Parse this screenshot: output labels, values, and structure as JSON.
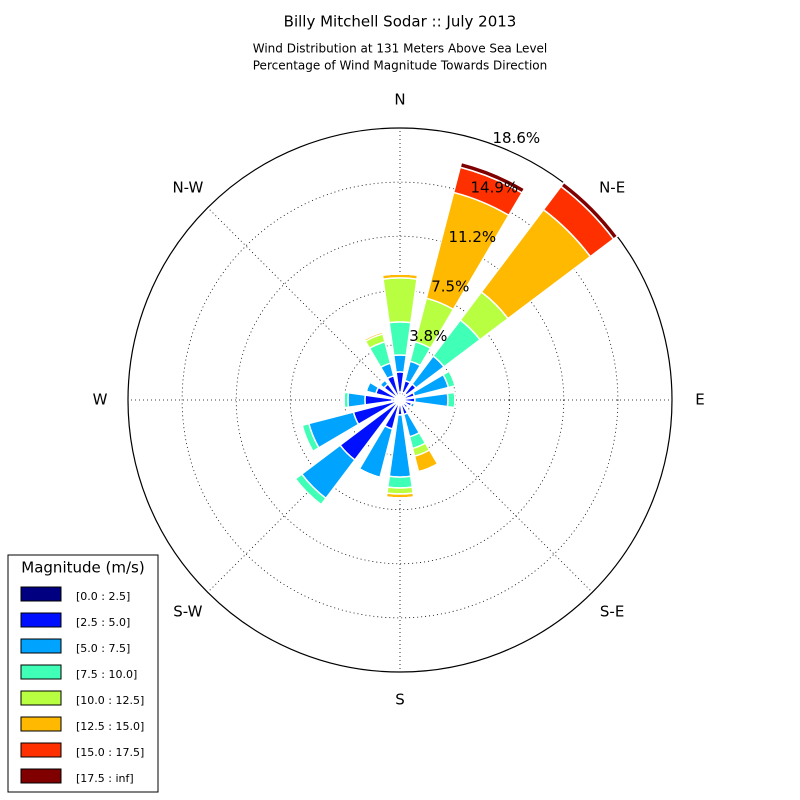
{
  "chart_data": {
    "type": "windrose",
    "title": "Billy Mitchell Sodar :: July 2013",
    "subtitle": [
      "Wind Distribution at 131 Meters Above Sea Level",
      "Percentage of Wind Magnitude Towards Direction"
    ],
    "categories": [
      "N",
      null,
      "N-E",
      null,
      "E",
      null,
      "S-E",
      null,
      "S",
      null,
      "S-W",
      null,
      "W",
      null,
      "N-W",
      null
    ],
    "legend_title": "Magnitude (m/s)",
    "legend": "lower left",
    "ylim": [
      0,
      18.6
    ],
    "yticks": [
      {
        "value": 3.8,
        "label": "3.8%"
      },
      {
        "value": 7.5,
        "label": "7.5%"
      },
      {
        "value": 11.2,
        "label": "11.2%"
      },
      {
        "value": 14.9,
        "label": "14.9%"
      },
      {
        "value": 18.6,
        "label": "18.6%"
      }
    ],
    "grid": true,
    "series": [
      {
        "name": "[0.0 : 2.5]",
        "color": "#000080",
        "values": [
          0.55,
          0.55,
          0.55,
          0.34,
          0.34,
          0.34,
          0.27,
          0.34,
          0.34,
          0.34,
          0.34,
          0.34,
          0.55,
          0.34,
          0.34,
          0.34
        ]
      },
      {
        "name": "[2.5 : 5.0]",
        "color": "#0010ff",
        "values": [
          1.37,
          0.82,
          0.82,
          0.68,
          0.68,
          0.48,
          0.41,
          0.68,
          0.68,
          1.71,
          4.79,
          2.95,
          1.85,
          1.37,
          1.03,
          1.37
        ]
      },
      {
        "name": "[5.0 : 7.5]",
        "color": "#00a4ff",
        "values": [
          1.16,
          1.37,
          2.4,
          2.4,
          2.26,
          0.21,
          0,
          1.58,
          4.25,
          3.42,
          3.29,
          3.15,
          1.16,
          0.68,
          0.34,
          0.89
        ]
      },
      {
        "name": "[7.5 : 10.0]",
        "color": "#40ffb7",
        "values": [
          2.26,
          1.37,
          3.08,
          0.48,
          0.48,
          0,
          0,
          0.82,
          0.75,
          0,
          0.55,
          0.48,
          0.27,
          0,
          0,
          1.51
        ]
      },
      {
        "name": "[10.0 : 12.5]",
        "color": "#b7ff40",
        "values": [
          3.01,
          3.08,
          2.4,
          0,
          0,
          0,
          0,
          0.55,
          0.41,
          0,
          0,
          0,
          0,
          0,
          0,
          0.55
        ]
      },
      {
        "name": "[12.5 : 15.0]",
        "color": "#ffb900",
        "values": [
          0.27,
          7.47,
          7.05,
          0,
          0,
          0,
          0,
          1.1,
          0.27,
          0,
          0,
          0,
          0,
          0,
          0,
          0.14
        ]
      },
      {
        "name": "[15.0 : 17.5]",
        "color": "#ff3000",
        "values": [
          0,
          1.78,
          1.99,
          0,
          0,
          0,
          0,
          0,
          0,
          0,
          0,
          0,
          0,
          0,
          0,
          0
        ]
      },
      {
        "name": "[17.5 : inf]",
        "color": "#800000",
        "values": [
          0,
          0.34,
          0.34,
          0,
          0,
          0,
          0,
          0,
          0,
          0,
          0,
          0,
          0,
          0,
          0,
          0
        ]
      }
    ]
  }
}
